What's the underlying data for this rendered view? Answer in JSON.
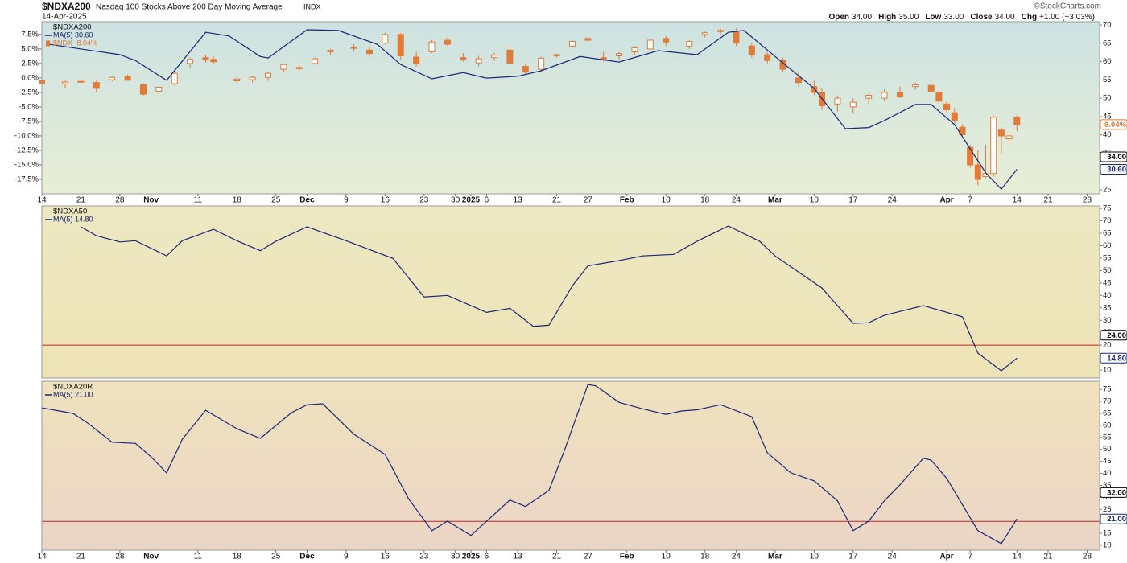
{
  "header": {
    "symbol": "$NDXA200",
    "name": "Nasdaq 100 Stocks Above 200 Day Moving Average",
    "exchange": "INDX",
    "date": "14-Apr-2025",
    "watermark": "©StockCharts.com",
    "quote": [
      {
        "label": "Open",
        "value": "34.00"
      },
      {
        "label": "High",
        "value": "35.00"
      },
      {
        "label": "Low",
        "value": "33.00"
      },
      {
        "label": "Close",
        "value": "34.00"
      },
      {
        "label": "Chg",
        "value": "+1.00 (+3.03%)"
      }
    ]
  },
  "chart_data": [
    {
      "type": "candlestick",
      "title": "$NDXA200",
      "xlim": [
        0,
        135.6
      ],
      "xticks": [
        {
          "value": 0,
          "label": "14"
        },
        {
          "value": 5,
          "label": "21"
        },
        {
          "value": 10,
          "label": "28"
        },
        {
          "value": 14,
          "label": "Nov"
        },
        {
          "value": 20,
          "label": "11"
        },
        {
          "value": 25,
          "label": "18"
        },
        {
          "value": 30,
          "label": "25"
        },
        {
          "value": 34,
          "label": "Dec"
        },
        {
          "value": 39,
          "label": "9"
        },
        {
          "value": 44,
          "label": "16"
        },
        {
          "value": 49,
          "label": "23"
        },
        {
          "value": 53,
          "label": "30"
        },
        {
          "value": 55,
          "label": "2025"
        },
        {
          "value": 57,
          "label": "6"
        },
        {
          "value": 61,
          "label": "13"
        },
        {
          "value": 66,
          "label": "21"
        },
        {
          "value": 70,
          "label": "27"
        },
        {
          "value": 75,
          "label": "Feb"
        },
        {
          "value": 80,
          "label": "10"
        },
        {
          "value": 85,
          "label": "18"
        },
        {
          "value": 89,
          "label": "24"
        },
        {
          "value": 94,
          "label": "Mar"
        },
        {
          "value": 99,
          "label": "10"
        },
        {
          "value": 104,
          "label": "17"
        },
        {
          "value": 109,
          "label": "24"
        },
        {
          "value": 116,
          "label": "Apr"
        },
        {
          "value": 119,
          "label": "7"
        },
        {
          "value": 125,
          "label": "14"
        },
        {
          "value": 129,
          "label": "21"
        },
        {
          "value": 134,
          "label": "28"
        }
      ],
      "ylim": [
        -20,
        9.7
      ],
      "yaxis_position": "left",
      "yticks": [
        {
          "value": 7.5,
          "label": "7.5%"
        },
        {
          "value": 5,
          "label": "5.0%"
        },
        {
          "value": 2.5,
          "label": "2.5%"
        },
        {
          "value": 0,
          "label": "0.0%"
        },
        {
          "value": -2.5,
          "label": "-2.5%"
        },
        {
          "value": -5,
          "label": "-5.0%"
        },
        {
          "value": -7.5,
          "label": "-7.5%"
        },
        {
          "value": -10,
          "label": "-10.0%"
        },
        {
          "value": -12.5,
          "label": "-12.5%"
        },
        {
          "value": -15,
          "label": "-15.0%"
        },
        {
          "value": -17.5,
          "label": "-17.5%"
        }
      ],
      "y2lim": [
        23.9,
        70.9
      ],
      "y2ticks": [
        25,
        30,
        35,
        40,
        45,
        50,
        55,
        60,
        65,
        70
      ],
      "series": [
        {
          "name": "MA(5) 30.60",
          "color": "#1c2777",
          "axis": "y2",
          "x": [
            1,
            10,
            12,
            16,
            21,
            24,
            28,
            29,
            34,
            38,
            43,
            46,
            50,
            54,
            57,
            61,
            64,
            69,
            74,
            79,
            84,
            88,
            90,
            94,
            99,
            103,
            106,
            108,
            112,
            114,
            117,
            121,
            123,
            125
          ],
          "values": [
            64.7,
            61.9,
            60.3,
            54.9,
            68,
            67,
            61.4,
            61,
            68.7,
            68.5,
            64.7,
            59.2,
            55.3,
            57,
            55.5,
            56,
            57.5,
            61.4,
            59.9,
            63,
            61.9,
            68,
            68.5,
            61.4,
            52.7,
            41.7,
            42,
            43.9,
            48.3,
            48.3,
            42.8,
            29.6,
            25.2,
            30.6
          ]
        }
      ],
      "candles": {
        "name": "$NDX -8.04%",
        "color": "#e07b39",
        "x": [
          0,
          3,
          5,
          7,
          9,
          11,
          13,
          15,
          17,
          19,
          21,
          22,
          25,
          27,
          29,
          31,
          33,
          35,
          37,
          40,
          42,
          44,
          46,
          48,
          50,
          52,
          54,
          56,
          58,
          60,
          62,
          64,
          66,
          68,
          70,
          72,
          74,
          76,
          78,
          80,
          83,
          85,
          87,
          89,
          91,
          93,
          95,
          97,
          99,
          100,
          102,
          104,
          106,
          108,
          110,
          112,
          114,
          115,
          116,
          117,
          118,
          119,
          120,
          121,
          122,
          123,
          124,
          125
        ],
        "open": [
          -0.5,
          -1,
          -0.7,
          -0.8,
          -0.3,
          0.3,
          -1.2,
          -2.3,
          -1,
          2.5,
          3.5,
          3.2,
          -0.5,
          -0.3,
          0.1,
          1.5,
          1.8,
          2.5,
          4.5,
          5.3,
          4.8,
          6,
          7.5,
          3.6,
          4.5,
          6.5,
          3.5,
          2.6,
          3.5,
          4.8,
          2,
          1.5,
          3.8,
          5.5,
          6.8,
          3.5,
          3.8,
          4.5,
          5,
          6.8,
          5.5,
          7.5,
          8,
          8,
          5.5,
          4,
          3,
          0,
          -1.5,
          -2.5,
          -4.5,
          -5,
          -3.5,
          -3.5,
          -2.5,
          -1.5,
          -1.3,
          -2.5,
          -4.5,
          -6,
          -8.5,
          -12,
          -15,
          -17,
          -16.5,
          -9,
          -10.5,
          -6.8
        ],
        "high": [
          0,
          -0.5,
          -0.3,
          -0.3,
          0.3,
          0.6,
          -0.9,
          -1.5,
          1,
          3.5,
          4,
          3.7,
          0.2,
          0.3,
          1,
          2.5,
          2.2,
          3.5,
          5,
          5.8,
          5.5,
          7.8,
          7.7,
          4.5,
          6.5,
          7,
          4.3,
          3.8,
          4.3,
          5.5,
          2.5,
          3.6,
          4.2,
          6.5,
          7.2,
          4.5,
          4.5,
          5.5,
          6.8,
          7.2,
          6.5,
          8,
          8.5,
          8.5,
          6,
          4.5,
          3.5,
          1,
          -0.5,
          -1.8,
          -3,
          -3.5,
          -2.5,
          -2,
          -1.5,
          -0.8,
          -0.8,
          -2,
          -4,
          -5.2,
          -8,
          -11.5,
          -12.5,
          -11.5,
          -6.5,
          -8.5,
          -9.5,
          -6.5
        ],
        "low": [
          -1.5,
          -1.8,
          -1.2,
          -2.5,
          -0.6,
          -0.5,
          -3,
          -2.8,
          -1.3,
          1.8,
          2.7,
          2.4,
          -1,
          -0.8,
          -0.5,
          1,
          1.2,
          2.3,
          4,
          4.5,
          3.8,
          5.8,
          3,
          2,
          4.3,
          5.5,
          2.8,
          2,
          3,
          2.3,
          0.5,
          1,
          3.5,
          5.2,
          6.2,
          2.8,
          3,
          4,
          4.8,
          5.5,
          5,
          7,
          7.5,
          5.5,
          3.5,
          2.5,
          1,
          -1.5,
          -3,
          -5.5,
          -5.8,
          -6,
          -4.5,
          -4,
          -3.5,
          -2,
          -2.5,
          -4.5,
          -6,
          -7.8,
          -10,
          -15.5,
          -18.5,
          -17.3,
          -17,
          -13,
          -11.5,
          -9.2
        ],
        "close": [
          -1,
          -0.7,
          -0.6,
          -1.8,
          0.1,
          -0.4,
          -2.8,
          -1.6,
          0.8,
          3.2,
          3.1,
          2.8,
          -0.2,
          0.1,
          0.8,
          2.3,
          1.6,
          3.3,
          4.8,
          5.1,
          4.2,
          7.5,
          3.8,
          2.5,
          6.2,
          5.8,
          3.2,
          3.3,
          3.9,
          2.5,
          1,
          3.4,
          4,
          6.3,
          6.5,
          3.2,
          4.2,
          5.2,
          6.5,
          6.2,
          6.3,
          7.8,
          8.2,
          6,
          4,
          3,
          1.5,
          -0.8,
          -2.5,
          -4.8,
          -3.5,
          -4.2,
          -3,
          -2.5,
          -3.2,
          -1.2,
          -2.3,
          -4,
          -5.5,
          -7.3,
          -9.8,
          -15,
          -17.5,
          -16.5,
          -6.8,
          -10,
          -10,
          -8.04
        ]
      },
      "last_labels": [
        {
          "value": -8.04,
          "label": "-8.04%",
          "axis": "y",
          "color": "#e07b39"
        },
        {
          "value": 34,
          "label": "34.00",
          "axis": "y2",
          "color": "#000000"
        },
        {
          "value": 30.6,
          "label": "30.60",
          "axis": "y2",
          "color": "#1c2777"
        }
      ]
    },
    {
      "type": "line",
      "title": "$NDXA50",
      "xlim": [
        0,
        135.6
      ],
      "ylim": [
        6.8,
        76
      ],
      "yaxis_position": "right",
      "yticks": [
        10,
        15,
        20,
        25,
        30,
        35,
        40,
        45,
        50,
        55,
        60,
        65,
        70,
        75
      ],
      "reference_line": {
        "value": 20,
        "color": "#c0282d"
      },
      "series": [
        {
          "name": "MA(5) 14.80",
          "color": "#1c2777",
          "x": [
            5,
            7,
            10,
            12,
            16,
            18,
            22,
            25,
            28,
            30,
            34,
            39,
            45,
            49,
            52,
            57,
            60,
            63,
            65,
            68,
            70,
            74,
            77,
            81,
            84,
            88,
            92,
            94,
            97,
            100,
            104,
            106,
            108,
            113,
            118,
            120,
            123,
            125
          ],
          "values": [
            67.6,
            64,
            61.5,
            62,
            55.9,
            62,
            66.6,
            62,
            58,
            61.8,
            67.6,
            62,
            54.9,
            39.4,
            40,
            33.2,
            34.8,
            27.6,
            28,
            43.8,
            51.9,
            54,
            55.9,
            56.5,
            61.8,
            67.9,
            61.8,
            55.9,
            49.4,
            43,
            28.8,
            29,
            32,
            35.9,
            31.4,
            16.8,
            9.7,
            14.8
          ]
        }
      ],
      "last_labels": [
        {
          "value": 24,
          "label": "24.00",
          "axis": "y",
          "color": "#000000"
        },
        {
          "value": 14.8,
          "label": "14.80",
          "axis": "y",
          "color": "#1c2777"
        }
      ]
    },
    {
      "type": "line",
      "title": "$NDXA20R",
      "xlim": [
        0,
        135.6
      ],
      "xticks": [
        {
          "value": 0,
          "label": "14"
        },
        {
          "value": 5,
          "label": "21"
        },
        {
          "value": 10,
          "label": "28"
        },
        {
          "value": 14,
          "label": "Nov"
        },
        {
          "value": 20,
          "label": "11"
        },
        {
          "value": 25,
          "label": "18"
        },
        {
          "value": 30,
          "label": "25"
        },
        {
          "value": 34,
          "label": "Dec"
        },
        {
          "value": 39,
          "label": "9"
        },
        {
          "value": 44,
          "label": "16"
        },
        {
          "value": 49,
          "label": "23"
        },
        {
          "value": 53,
          "label": "30"
        },
        {
          "value": 55,
          "label": "2025"
        },
        {
          "value": 57,
          "label": "6"
        },
        {
          "value": 61,
          "label": "13"
        },
        {
          "value": 66,
          "label": "21"
        },
        {
          "value": 70,
          "label": "27"
        },
        {
          "value": 75,
          "label": "Feb"
        },
        {
          "value": 80,
          "label": "10"
        },
        {
          "value": 85,
          "label": "18"
        },
        {
          "value": 89,
          "label": "24"
        },
        {
          "value": 94,
          "label": "Mar"
        },
        {
          "value": 99,
          "label": "10"
        },
        {
          "value": 104,
          "label": "17"
        },
        {
          "value": 109,
          "label": "24"
        },
        {
          "value": 116,
          "label": "Apr"
        },
        {
          "value": 119,
          "label": "7"
        },
        {
          "value": 125,
          "label": "14"
        },
        {
          "value": 129,
          "label": "21"
        },
        {
          "value": 134,
          "label": "28"
        }
      ],
      "ylim": [
        8,
        78.4
      ],
      "yaxis_position": "right",
      "yticks": [
        10,
        15,
        20,
        25,
        30,
        35,
        40,
        45,
        50,
        55,
        60,
        65,
        70,
        75
      ],
      "reference_line": {
        "value": 20,
        "color": "#c0282d"
      },
      "series": [
        {
          "name": "MA(5) 21.00",
          "color": "#1c2777",
          "x": [
            0,
            4,
            6,
            9,
            12,
            14,
            16,
            18,
            21,
            25,
            28,
            32,
            34,
            36,
            40,
            44,
            47,
            50,
            52,
            55,
            60,
            62,
            65,
            67,
            70,
            71,
            74,
            77,
            80,
            82,
            84,
            87,
            91,
            93,
            96,
            99,
            102,
            104,
            106,
            108,
            110,
            113,
            114,
            116,
            120,
            123,
            125
          ],
          "values": [
            67.3,
            65,
            60.7,
            53,
            52.5,
            46.9,
            40.2,
            54.2,
            66.3,
            58.6,
            54.6,
            65.3,
            68.6,
            69,
            56.3,
            47.9,
            29.5,
            16.1,
            20.1,
            14.1,
            28.9,
            26.2,
            32.9,
            49.6,
            77,
            76.5,
            69.6,
            66.9,
            64.6,
            66,
            66.5,
            68.6,
            63.6,
            48.6,
            40.2,
            36.9,
            28.5,
            16.1,
            20.1,
            28.5,
            35.2,
            46.3,
            45.5,
            37.9,
            16.1,
            10.7,
            21
          ]
        }
      ],
      "last_labels": [
        {
          "value": 32,
          "label": "32.00",
          "axis": "y",
          "color": "#000000"
        },
        {
          "value": 21,
          "label": "21.00",
          "axis": "y",
          "color": "#1c2777"
        }
      ]
    }
  ]
}
